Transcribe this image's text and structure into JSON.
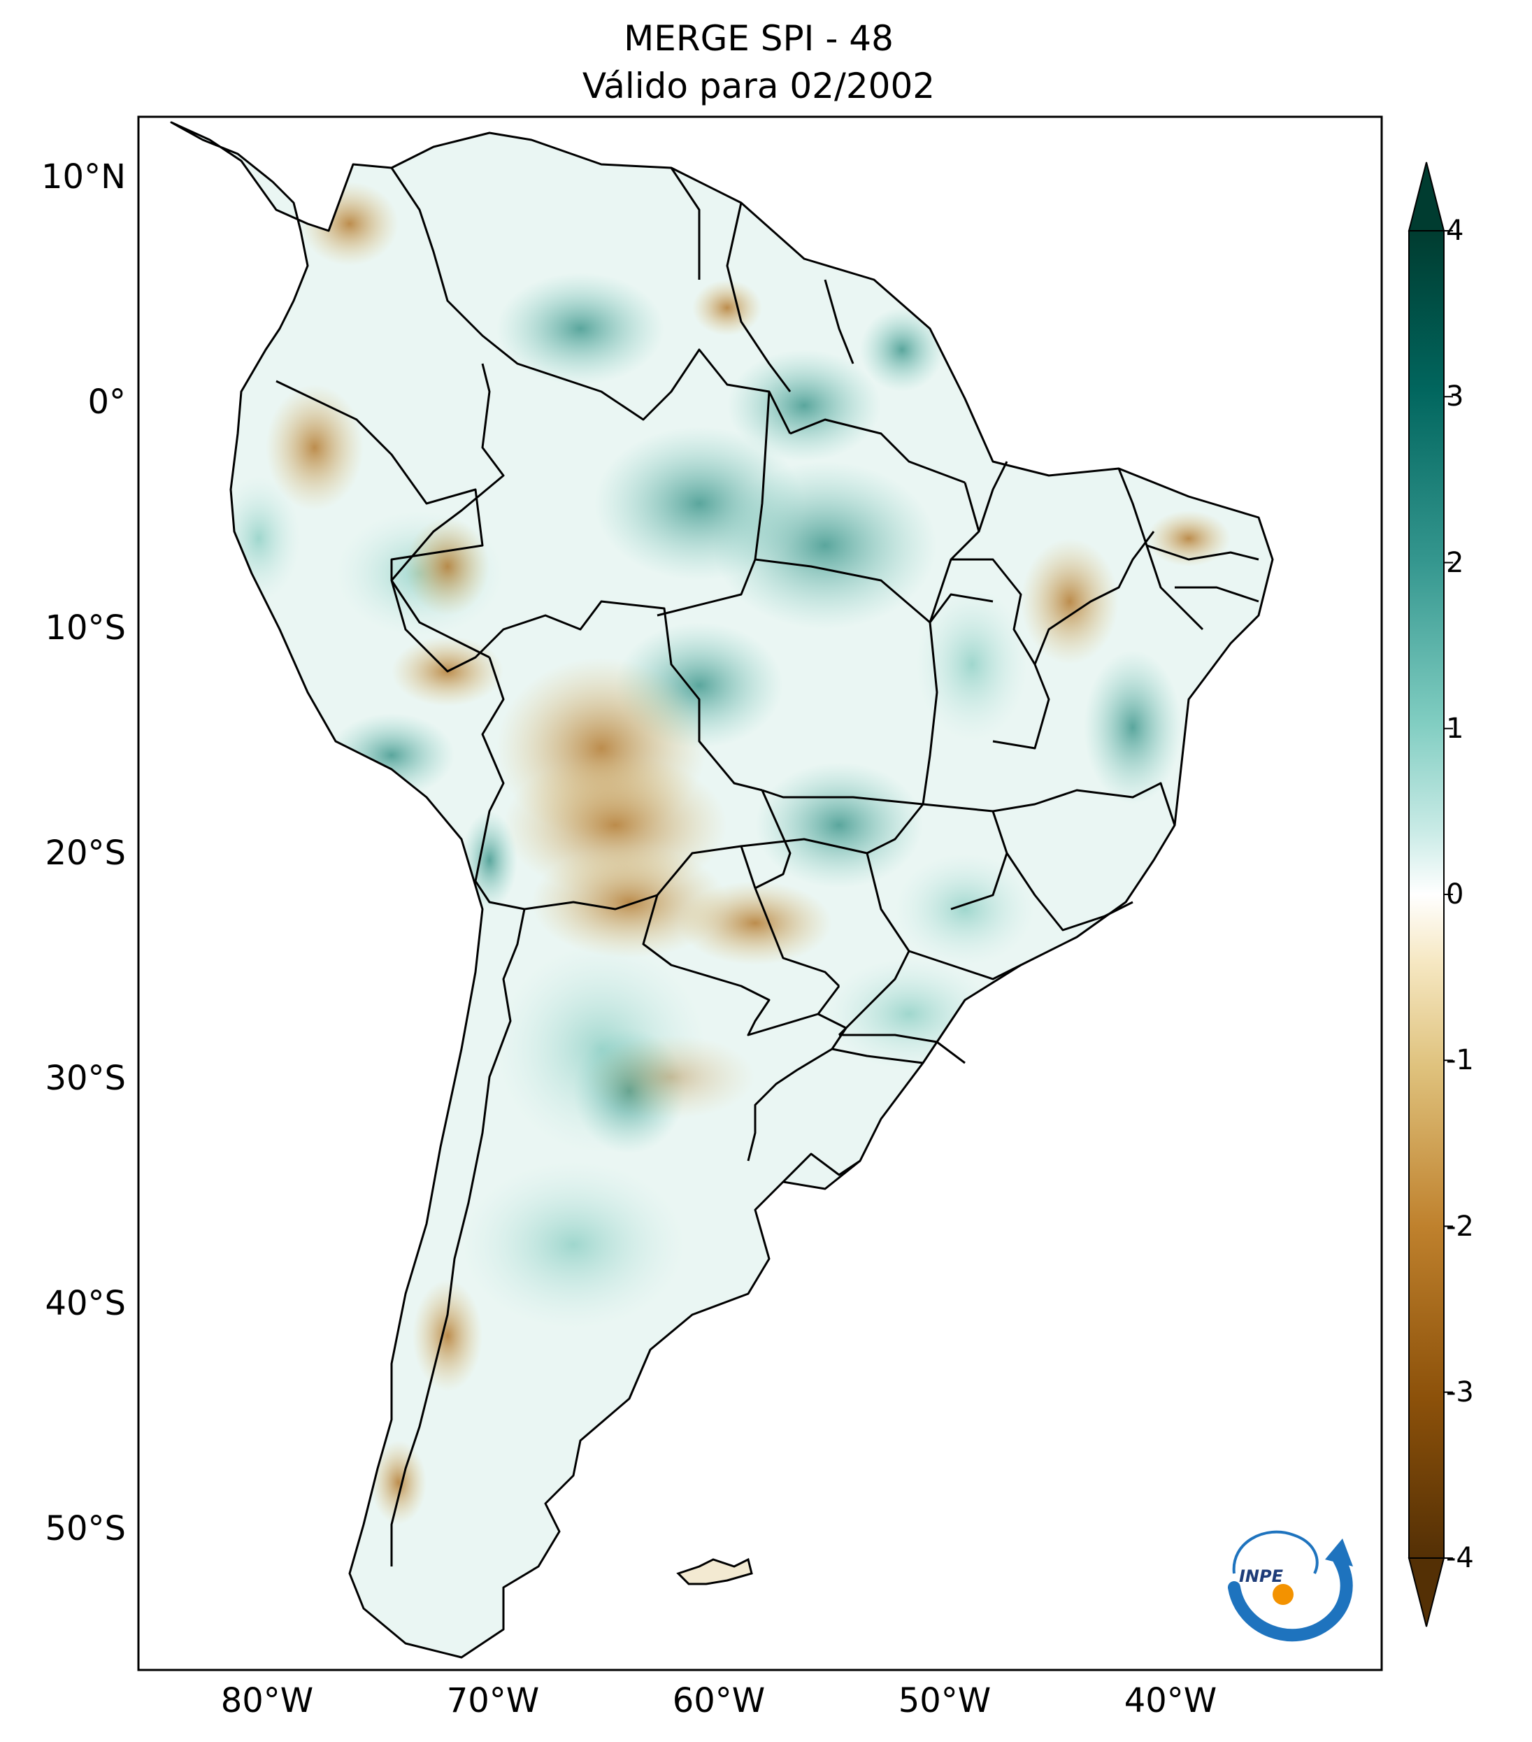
{
  "title": {
    "line1": "MERGE   SPI - 48",
    "line2": "Válido para 02/2002"
  },
  "map": {
    "lat_labels": [
      "10°N",
      "0°",
      "10°S",
      "20°S",
      "30°S",
      "40°S",
      "50°S"
    ],
    "lon_labels": [
      "80°W",
      "70°W",
      "60°W",
      "50°W",
      "40°W"
    ],
    "lat_range": [
      -56,
      12.5
    ],
    "lon_range": [
      -85,
      -30
    ]
  },
  "colorbar": {
    "ticks": [
      "4",
      "3",
      "2",
      "1",
      "0",
      "-1",
      "-2",
      "-3",
      "-4"
    ],
    "range": [
      -4,
      4
    ],
    "extend": "both",
    "colormap": "BrBG",
    "colors": {
      "dry_extreme": "#543005",
      "dry": "#bf812d",
      "neutral": "#ffffff",
      "wet": "#35978f",
      "wet_extreme": "#003c30"
    }
  },
  "logo": {
    "text": "INPE",
    "colors": {
      "arrow": "#1e73be",
      "sun": "#f39200"
    }
  }
}
